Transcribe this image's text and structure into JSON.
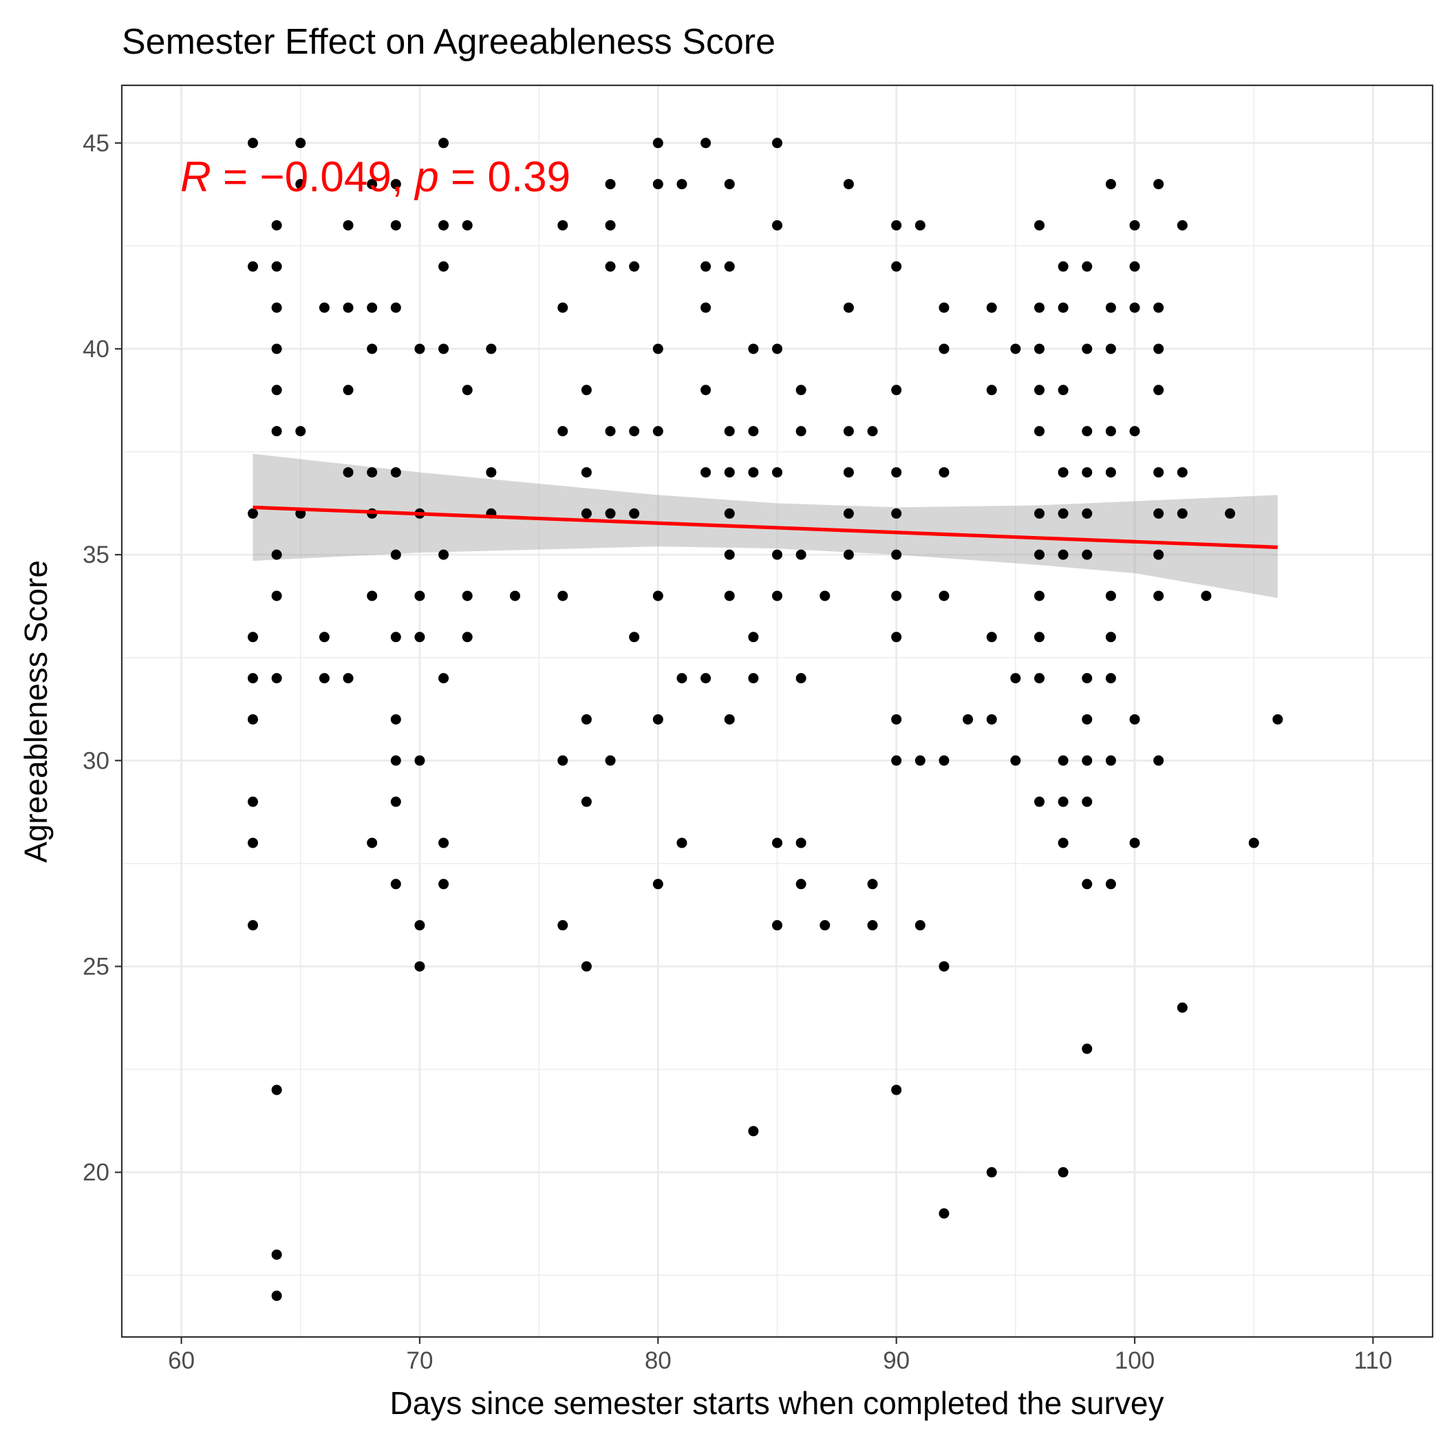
{
  "chart_data": {
    "type": "scatter",
    "title": "Semester Effect on Agreeableness Score",
    "xlabel": "Days since semester starts when completed the survey",
    "ylabel": "Agreeableness Score",
    "xlim": [
      57.5,
      112.5
    ],
    "ylim": [
      16.0,
      46.4
    ],
    "x_ticks": [
      60,
      70,
      80,
      90,
      100,
      110
    ],
    "y_ticks": [
      20,
      25,
      30,
      35,
      40,
      45
    ],
    "x_tick_labels": [
      "60",
      "70",
      "80",
      "90",
      "100",
      "110"
    ],
    "y_tick_labels": [
      "20",
      "25",
      "30",
      "35",
      "40",
      "45"
    ],
    "grid": true,
    "colors": {
      "points": "#000000",
      "fit_line": "#ff0000",
      "confidence_band": "#999999",
      "annotation": "#ff0000",
      "grid": "#ebebeb",
      "panel_border": "#333333"
    },
    "annotation": {
      "r_symbol": "R",
      "r_value": " = −0.049, ",
      "p_symbol": "p",
      "p_value": " = 0.39"
    },
    "regression": {
      "x_start": 63,
      "y_start": 36.15,
      "x_end": 106,
      "y_end": 35.18,
      "band_x": [
        63,
        70,
        80,
        85,
        90,
        96,
        100,
        106
      ],
      "band_lower": [
        34.85,
        35.05,
        35.2,
        35.15,
        35.0,
        34.75,
        34.55,
        33.95
      ],
      "band_upper": [
        37.45,
        37.0,
        36.45,
        36.25,
        36.15,
        36.2,
        36.3,
        36.45
      ]
    },
    "points": [
      [
        63,
        45
      ],
      [
        63,
        42
      ],
      [
        63,
        36
      ],
      [
        63,
        33
      ],
      [
        63,
        32
      ],
      [
        63,
        31
      ],
      [
        63,
        29
      ],
      [
        63,
        28
      ],
      [
        63,
        26
      ],
      [
        64,
        43
      ],
      [
        64,
        42
      ],
      [
        64,
        41
      ],
      [
        64,
        40
      ],
      [
        64,
        39
      ],
      [
        64,
        38
      ],
      [
        64,
        35
      ],
      [
        64,
        34
      ],
      [
        64,
        32
      ],
      [
        64,
        22
      ],
      [
        64,
        18
      ],
      [
        64,
        17
      ],
      [
        65,
        45
      ],
      [
        65,
        44
      ],
      [
        65,
        38
      ],
      [
        65,
        36
      ],
      [
        66,
        41
      ],
      [
        66,
        33
      ],
      [
        66,
        32
      ],
      [
        67,
        43
      ],
      [
        67,
        41
      ],
      [
        67,
        39
      ],
      [
        67,
        37
      ],
      [
        67,
        32
      ],
      [
        68,
        44
      ],
      [
        68,
        41
      ],
      [
        68,
        40
      ],
      [
        68,
        37
      ],
      [
        68,
        36
      ],
      [
        68,
        34
      ],
      [
        68,
        28
      ],
      [
        69,
        44
      ],
      [
        69,
        43
      ],
      [
        69,
        41
      ],
      [
        69,
        37
      ],
      [
        69,
        35
      ],
      [
        69,
        33
      ],
      [
        69,
        31
      ],
      [
        69,
        30
      ],
      [
        69,
        29
      ],
      [
        69,
        27
      ],
      [
        70,
        40
      ],
      [
        70,
        36
      ],
      [
        70,
        34
      ],
      [
        70,
        33
      ],
      [
        70,
        30
      ],
      [
        70,
        26
      ],
      [
        70,
        25
      ],
      [
        71,
        45
      ],
      [
        71,
        43
      ],
      [
        71,
        42
      ],
      [
        71,
        40
      ],
      [
        71,
        35
      ],
      [
        71,
        32
      ],
      [
        71,
        28
      ],
      [
        71,
        27
      ],
      [
        72,
        43
      ],
      [
        72,
        39
      ],
      [
        72,
        34
      ],
      [
        72,
        33
      ],
      [
        73,
        40
      ],
      [
        73,
        37
      ],
      [
        73,
        36
      ],
      [
        74,
        34
      ],
      [
        76,
        43
      ],
      [
        76,
        41
      ],
      [
        76,
        38
      ],
      [
        76,
        34
      ],
      [
        76,
        30
      ],
      [
        76,
        26
      ],
      [
        77,
        39
      ],
      [
        77,
        37
      ],
      [
        77,
        36
      ],
      [
        77,
        31
      ],
      [
        77,
        29
      ],
      [
        77,
        25
      ],
      [
        78,
        44
      ],
      [
        78,
        43
      ],
      [
        78,
        42
      ],
      [
        78,
        38
      ],
      [
        78,
        36
      ],
      [
        78,
        30
      ],
      [
        79,
        42
      ],
      [
        79,
        38
      ],
      [
        79,
        36
      ],
      [
        79,
        33
      ],
      [
        80,
        45
      ],
      [
        80,
        44
      ],
      [
        80,
        40
      ],
      [
        80,
        38
      ],
      [
        80,
        34
      ],
      [
        80,
        31
      ],
      [
        80,
        27
      ],
      [
        81,
        44
      ],
      [
        81,
        32
      ],
      [
        81,
        28
      ],
      [
        82,
        45
      ],
      [
        82,
        42
      ],
      [
        82,
        41
      ],
      [
        82,
        39
      ],
      [
        82,
        37
      ],
      [
        82,
        32
      ],
      [
        83,
        44
      ],
      [
        83,
        42
      ],
      [
        83,
        38
      ],
      [
        83,
        37
      ],
      [
        83,
        36
      ],
      [
        83,
        35
      ],
      [
        83,
        34
      ],
      [
        83,
        31
      ],
      [
        84,
        40
      ],
      [
        84,
        38
      ],
      [
        84,
        37
      ],
      [
        84,
        33
      ],
      [
        84,
        32
      ],
      [
        84,
        21
      ],
      [
        85,
        45
      ],
      [
        85,
        43
      ],
      [
        85,
        40
      ],
      [
        85,
        37
      ],
      [
        85,
        35
      ],
      [
        85,
        34
      ],
      [
        85,
        28
      ],
      [
        85,
        26
      ],
      [
        86,
        39
      ],
      [
        86,
        38
      ],
      [
        86,
        35
      ],
      [
        86,
        32
      ],
      [
        86,
        28
      ],
      [
        86,
        27
      ],
      [
        87,
        34
      ],
      [
        87,
        26
      ],
      [
        88,
        44
      ],
      [
        88,
        41
      ],
      [
        88,
        38
      ],
      [
        88,
        37
      ],
      [
        88,
        36
      ],
      [
        88,
        35
      ],
      [
        89,
        38
      ],
      [
        89,
        27
      ],
      [
        89,
        26
      ],
      [
        90,
        43
      ],
      [
        90,
        42
      ],
      [
        90,
        39
      ],
      [
        90,
        37
      ],
      [
        90,
        36
      ],
      [
        90,
        35
      ],
      [
        90,
        34
      ],
      [
        90,
        33
      ],
      [
        90,
        31
      ],
      [
        90,
        30
      ],
      [
        90,
        22
      ],
      [
        91,
        43
      ],
      [
        91,
        30
      ],
      [
        91,
        26
      ],
      [
        92,
        41
      ],
      [
        92,
        40
      ],
      [
        92,
        37
      ],
      [
        92,
        34
      ],
      [
        92,
        30
      ],
      [
        92,
        25
      ],
      [
        92,
        19
      ],
      [
        93,
        31
      ],
      [
        94,
        41
      ],
      [
        94,
        39
      ],
      [
        94,
        33
      ],
      [
        94,
        31
      ],
      [
        94,
        20
      ],
      [
        95,
        40
      ],
      [
        95,
        32
      ],
      [
        95,
        30
      ],
      [
        96,
        43
      ],
      [
        96,
        41
      ],
      [
        96,
        40
      ],
      [
        96,
        39
      ],
      [
        96,
        38
      ],
      [
        96,
        36
      ],
      [
        96,
        35
      ],
      [
        96,
        34
      ],
      [
        96,
        33
      ],
      [
        96,
        32
      ],
      [
        96,
        29
      ],
      [
        97,
        42
      ],
      [
        97,
        41
      ],
      [
        97,
        39
      ],
      [
        97,
        37
      ],
      [
        97,
        36
      ],
      [
        97,
        35
      ],
      [
        97,
        30
      ],
      [
        97,
        29
      ],
      [
        97,
        28
      ],
      [
        97,
        20
      ],
      [
        98,
        42
      ],
      [
        98,
        40
      ],
      [
        98,
        38
      ],
      [
        98,
        37
      ],
      [
        98,
        36
      ],
      [
        98,
        35
      ],
      [
        98,
        32
      ],
      [
        98,
        31
      ],
      [
        98,
        30
      ],
      [
        98,
        29
      ],
      [
        98,
        27
      ],
      [
        98,
        23
      ],
      [
        99,
        44
      ],
      [
        99,
        41
      ],
      [
        99,
        40
      ],
      [
        99,
        38
      ],
      [
        99,
        37
      ],
      [
        99,
        34
      ],
      [
        99,
        33
      ],
      [
        99,
        32
      ],
      [
        99,
        30
      ],
      [
        99,
        27
      ],
      [
        100,
        43
      ],
      [
        100,
        42
      ],
      [
        100,
        41
      ],
      [
        100,
        38
      ],
      [
        100,
        31
      ],
      [
        100,
        28
      ],
      [
        101,
        44
      ],
      [
        101,
        41
      ],
      [
        101,
        40
      ],
      [
        101,
        39
      ],
      [
        101,
        37
      ],
      [
        101,
        36
      ],
      [
        101,
        35
      ],
      [
        101,
        34
      ],
      [
        101,
        30
      ],
      [
        102,
        43
      ],
      [
        102,
        37
      ],
      [
        102,
        36
      ],
      [
        102,
        24
      ],
      [
        103,
        34
      ],
      [
        104,
        36
      ],
      [
        105,
        28
      ],
      [
        106,
        31
      ]
    ]
  }
}
